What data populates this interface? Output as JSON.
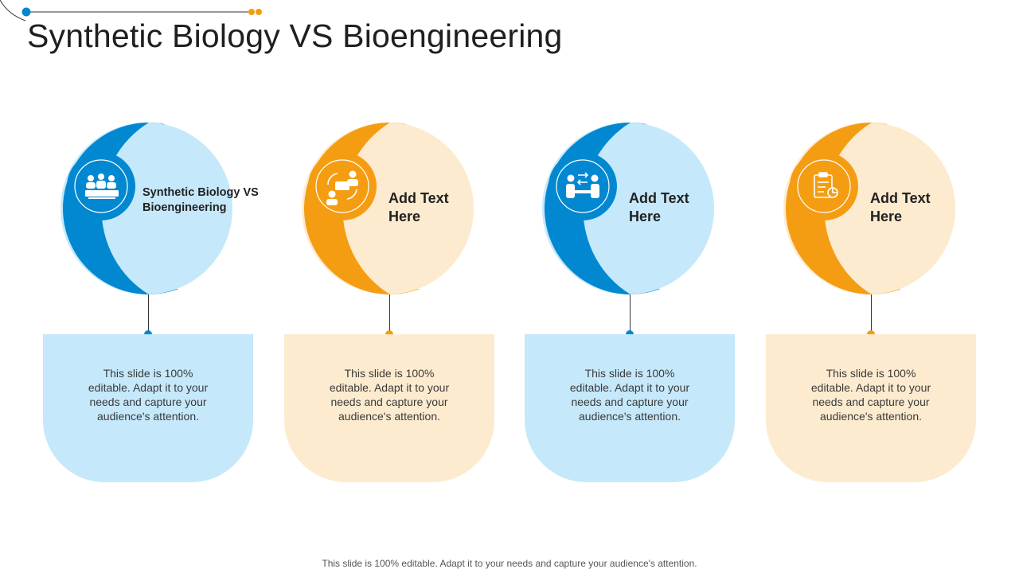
{
  "slide": {
    "title": "Synthetic Biology VS Bioengineering",
    "footer": "This slide is 100% editable. Adapt it to your needs and capture your audience's attention.",
    "colors": {
      "blue": "#0288d1",
      "light_blue": "#c5e8fb",
      "orange": "#f59d12",
      "light_orange": "#fdebcf"
    },
    "cards": [
      {
        "label": "Synthetic Biology VS Bioengineering",
        "text": "This slide is 100% editable. Adapt it to your needs and capture your audience's attention.",
        "theme": "blue",
        "icon": "classroom-icon"
      },
      {
        "label": "Add Text Here",
        "text": "This slide is 100% editable. Adapt it to your needs and capture your audience's attention.",
        "theme": "orange",
        "icon": "discussion-icon"
      },
      {
        "label": "Add Text Here",
        "text": "This slide is 100% editable. Adapt it to your needs and capture your audience's attention.",
        "theme": "blue",
        "icon": "exchange-icon"
      },
      {
        "label": "Add Text Here",
        "text": "This slide is 100% editable. Adapt it to your needs and capture your audience's attention.",
        "theme": "orange",
        "icon": "clipboard-chart-icon"
      }
    ]
  }
}
